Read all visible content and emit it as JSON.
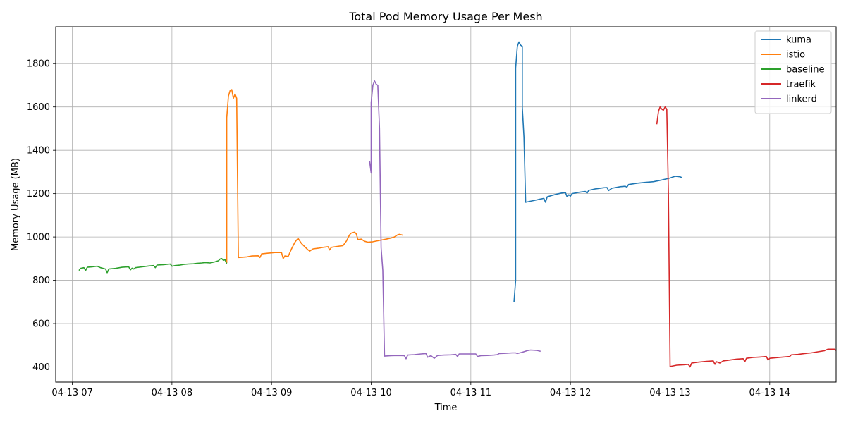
{
  "chart_data": {
    "type": "line",
    "title": "Total Pod Memory Usage Per Mesh",
    "xlabel": "Time",
    "ylabel": "Memory Usage (MB)",
    "x_ticks": [
      "04-13 07",
      "04-13 08",
      "04-13 09",
      "04-13 10",
      "04-13 11",
      "04-13 12",
      "04-13 13",
      "04-13 14"
    ],
    "y_ticks": [
      400,
      600,
      800,
      1000,
      1200,
      1400,
      1600,
      1800
    ],
    "xlim": [
      "04-13 06:50",
      "04-13 14:40"
    ],
    "ylim": [
      330,
      1970
    ],
    "grid": true,
    "legend_position": "top-right",
    "series": [
      {
        "name": "kuma",
        "color": "#1f77b4",
        "points": [
          [
            "04-13 11:26",
            700
          ],
          [
            "04-13 11:27",
            800
          ],
          [
            "04-13 11:27",
            1780
          ],
          [
            "04-13 11:28",
            1880
          ],
          [
            "04-13 11:29",
            1900
          ],
          [
            "04-13 11:30",
            1885
          ],
          [
            "04-13 11:31",
            1880
          ],
          [
            "04-13 11:31",
            1600
          ],
          [
            "04-13 11:32",
            1460
          ],
          [
            "04-13 11:33",
            1160
          ],
          [
            "04-13 11:36",
            1165
          ],
          [
            "04-13 11:39",
            1170
          ],
          [
            "04-13 11:42",
            1175
          ],
          [
            "04-13 11:44",
            1178
          ],
          [
            "04-13 11:45",
            1160
          ],
          [
            "04-13 11:46",
            1185
          ],
          [
            "04-13 11:49",
            1192
          ],
          [
            "04-13 11:52",
            1198
          ],
          [
            "04-13 11:55",
            1203
          ],
          [
            "04-13 11:57",
            1205
          ],
          [
            "04-13 11:58",
            1185
          ],
          [
            "04-13 11:59",
            1195
          ],
          [
            "04-13 12:00",
            1188
          ],
          [
            "04-13 12:01",
            1200
          ],
          [
            "04-13 12:05",
            1206
          ],
          [
            "04-13 12:09",
            1210
          ],
          [
            "04-13 12:10",
            1202
          ],
          [
            "04-13 12:11",
            1215
          ],
          [
            "04-13 12:15",
            1222
          ],
          [
            "04-13 12:20",
            1227
          ],
          [
            "04-13 12:22",
            1228
          ],
          [
            "04-13 12:23",
            1214
          ],
          [
            "04-13 12:25",
            1225
          ],
          [
            "04-13 12:30",
            1232
          ],
          [
            "04-13 12:33",
            1234
          ],
          [
            "04-13 12:34",
            1230
          ],
          [
            "04-13 12:35",
            1242
          ],
          [
            "04-13 12:40",
            1248
          ],
          [
            "04-13 12:45",
            1252
          ],
          [
            "04-13 12:47",
            1253
          ],
          [
            "04-13 12:50",
            1255
          ],
          [
            "04-13 12:55",
            1263
          ],
          [
            "04-13 13:00",
            1272
          ],
          [
            "04-13 13:03",
            1280
          ],
          [
            "04-13 13:06",
            1278
          ],
          [
            "04-13 13:07",
            1274
          ]
        ]
      },
      {
        "name": "istio",
        "color": "#ff7f0e",
        "points": [
          [
            "04-13 08:33",
            880
          ],
          [
            "04-13 08:33",
            1550
          ],
          [
            "04-13 08:34",
            1650
          ],
          [
            "04-13 08:35",
            1675
          ],
          [
            "04-13 08:36",
            1680
          ],
          [
            "04-13 08:37",
            1640
          ],
          [
            "04-13 08:38",
            1660
          ],
          [
            "04-13 08:39",
            1640
          ],
          [
            "04-13 08:40",
            905
          ],
          [
            "04-13 08:45",
            908
          ],
          [
            "04-13 08:48",
            912
          ],
          [
            "04-13 08:52",
            913
          ],
          [
            "04-13 08:53",
            905
          ],
          [
            "04-13 08:54",
            922
          ],
          [
            "04-13 08:58",
            925
          ],
          [
            "04-13 09:02",
            928
          ],
          [
            "04-13 09:06",
            928
          ],
          [
            "04-13 09:07",
            900
          ],
          [
            "04-13 09:08",
            912
          ],
          [
            "04-13 09:10",
            910
          ],
          [
            "04-13 09:12",
            945
          ],
          [
            "04-13 09:14",
            975
          ],
          [
            "04-13 09:15",
            985
          ],
          [
            "04-13 09:16",
            993
          ],
          [
            "04-13 09:18",
            970
          ],
          [
            "04-13 09:20",
            955
          ],
          [
            "04-13 09:22",
            940
          ],
          [
            "04-13 09:23",
            935
          ],
          [
            "04-13 09:25",
            945
          ],
          [
            "04-13 09:28",
            948
          ],
          [
            "04-13 09:31",
            952
          ],
          [
            "04-13 09:34",
            955
          ],
          [
            "04-13 09:35",
            940
          ],
          [
            "04-13 09:36",
            952
          ],
          [
            "04-13 09:41",
            958
          ],
          [
            "04-13 09:43",
            960
          ],
          [
            "04-13 09:45",
            980
          ],
          [
            "04-13 09:47",
            1010
          ],
          [
            "04-13 09:48",
            1018
          ],
          [
            "04-13 09:50",
            1022
          ],
          [
            "04-13 09:51",
            1015
          ],
          [
            "04-13 09:52",
            988
          ],
          [
            "04-13 09:54",
            990
          ],
          [
            "04-13 09:56",
            980
          ],
          [
            "04-13 09:58",
            976
          ],
          [
            "04-13 10:01",
            978
          ],
          [
            "04-13 10:05",
            984
          ],
          [
            "04-13 10:09",
            990
          ],
          [
            "04-13 10:12",
            995
          ],
          [
            "04-13 10:14",
            1000
          ],
          [
            "04-13 10:16",
            1010
          ],
          [
            "04-13 10:17",
            1012
          ],
          [
            "04-13 10:19",
            1008
          ]
        ]
      },
      {
        "name": "baseline",
        "color": "#2ca02c",
        "points": [
          [
            "04-13 07:04",
            845
          ],
          [
            "04-13 07:05",
            855
          ],
          [
            "04-13 07:07",
            858
          ],
          [
            "04-13 07:08",
            845
          ],
          [
            "04-13 07:09",
            860
          ],
          [
            "04-13 07:12",
            862
          ],
          [
            "04-13 07:15",
            865
          ],
          [
            "04-13 07:17",
            858
          ],
          [
            "04-13 07:20",
            852
          ],
          [
            "04-13 07:21",
            835
          ],
          [
            "04-13 07:22",
            852
          ],
          [
            "04-13 07:26",
            855
          ],
          [
            "04-13 07:30",
            860
          ],
          [
            "04-13 07:34",
            862
          ],
          [
            "04-13 07:35",
            848
          ],
          [
            "04-13 07:36",
            856
          ],
          [
            "04-13 07:37",
            852
          ],
          [
            "04-13 07:38",
            858
          ],
          [
            "04-13 07:42",
            862
          ],
          [
            "04-13 07:46",
            866
          ],
          [
            "04-13 07:49",
            868
          ],
          [
            "04-13 07:50",
            858
          ],
          [
            "04-13 07:51",
            870
          ],
          [
            "04-13 07:55",
            872
          ],
          [
            "04-13 07:59",
            875
          ],
          [
            "04-13 08:00",
            865
          ],
          [
            "04-13 08:02",
            868
          ],
          [
            "04-13 08:05",
            870
          ],
          [
            "04-13 08:07",
            873
          ],
          [
            "04-13 08:10",
            875
          ],
          [
            "04-13 08:13",
            876
          ],
          [
            "04-13 08:15",
            878
          ],
          [
            "04-13 08:18",
            880
          ],
          [
            "04-13 08:20",
            882
          ],
          [
            "04-13 08:23",
            880
          ],
          [
            "04-13 08:26",
            885
          ],
          [
            "04-13 08:28",
            890
          ],
          [
            "04-13 08:29",
            898
          ],
          [
            "04-13 08:30",
            900
          ],
          [
            "04-13 08:31",
            892
          ],
          [
            "04-13 08:32",
            895
          ],
          [
            "04-13 08:33",
            875
          ]
        ]
      },
      {
        "name": "traefik",
        "color": "#d62728",
        "points": [
          [
            "04-13 12:52",
            1520
          ],
          [
            "04-13 12:53",
            1580
          ],
          [
            "04-13 12:54",
            1600
          ],
          [
            "04-13 12:55",
            1590
          ],
          [
            "04-13 12:56",
            1585
          ],
          [
            "04-13 12:57",
            1600
          ],
          [
            "04-13 12:58",
            1590
          ],
          [
            "04-13 12:59",
            1200
          ],
          [
            "04-13 13:00",
            402
          ],
          [
            "04-13 13:04",
            408
          ],
          [
            "04-13 13:08",
            410
          ],
          [
            "04-13 13:11",
            412
          ],
          [
            "04-13 13:12",
            400
          ],
          [
            "04-13 13:13",
            418
          ],
          [
            "04-13 13:17",
            422
          ],
          [
            "04-13 13:22",
            426
          ],
          [
            "04-13 13:26",
            428
          ],
          [
            "04-13 13:27",
            412
          ],
          [
            "04-13 13:28",
            424
          ],
          [
            "04-13 13:30",
            418
          ],
          [
            "04-13 13:32",
            428
          ],
          [
            "04-13 13:36",
            432
          ],
          [
            "04-13 13:40",
            436
          ],
          [
            "04-13 13:44",
            438
          ],
          [
            "04-13 13:45",
            424
          ],
          [
            "04-13 13:46",
            440
          ],
          [
            "04-13 13:50",
            444
          ],
          [
            "04-13 13:54",
            446
          ],
          [
            "04-13 13:58",
            448
          ],
          [
            "04-13 13:59",
            432
          ],
          [
            "04-13 14:00",
            440
          ],
          [
            "04-13 14:04",
            443
          ],
          [
            "04-13 14:08",
            446
          ],
          [
            "04-13 14:12",
            448
          ],
          [
            "04-13 14:13",
            456
          ],
          [
            "04-13 14:17",
            458
          ],
          [
            "04-13 14:21",
            462
          ],
          [
            "04-13 14:25",
            465
          ],
          [
            "04-13 14:29",
            470
          ],
          [
            "04-13 14:33",
            475
          ],
          [
            "04-13 14:35",
            482
          ],
          [
            "04-13 14:39",
            482
          ],
          [
            "04-13 14:40",
            476
          ]
        ]
      },
      {
        "name": "linkerd",
        "color": "#9467bd",
        "points": [
          [
            "04-13 09:59",
            1350
          ],
          [
            "04-13 10:00",
            1295
          ],
          [
            "04-13 10:00",
            1620
          ],
          [
            "04-13 10:01",
            1700
          ],
          [
            "04-13 10:02",
            1720
          ],
          [
            "04-13 10:03",
            1705
          ],
          [
            "04-13 10:04",
            1700
          ],
          [
            "04-13 10:05",
            1500
          ],
          [
            "04-13 10:06",
            950
          ],
          [
            "04-13 10:07",
            845
          ],
          [
            "04-13 10:08",
            450
          ],
          [
            "04-13 10:12",
            452
          ],
          [
            "04-13 10:16",
            453
          ],
          [
            "04-13 10:20",
            452
          ],
          [
            "04-13 10:21",
            438
          ],
          [
            "04-13 10:22",
            455
          ],
          [
            "04-13 10:26",
            457
          ],
          [
            "04-13 10:30",
            460
          ],
          [
            "04-13 10:33",
            462
          ],
          [
            "04-13 10:34",
            445
          ],
          [
            "04-13 10:36",
            452
          ],
          [
            "04-13 10:38",
            440
          ],
          [
            "04-13 10:40",
            453
          ],
          [
            "04-13 10:44",
            455
          ],
          [
            "04-13 10:48",
            456
          ],
          [
            "04-13 10:51",
            458
          ],
          [
            "04-13 10:52",
            448
          ],
          [
            "04-13 10:53",
            460
          ],
          [
            "04-13 10:57",
            460
          ],
          [
            "04-13 11:01",
            460
          ],
          [
            "04-13 11:03",
            460
          ],
          [
            "04-13 11:04",
            448
          ],
          [
            "04-13 11:06",
            452
          ],
          [
            "04-13 11:10",
            453
          ],
          [
            "04-13 11:14",
            455
          ],
          [
            "04-13 11:16",
            457
          ],
          [
            "04-13 11:17",
            462
          ],
          [
            "04-13 11:21",
            463
          ],
          [
            "04-13 11:25",
            465
          ],
          [
            "04-13 11:27",
            465
          ],
          [
            "04-13 11:28",
            462
          ],
          [
            "04-13 11:31",
            468
          ],
          [
            "04-13 11:34",
            475
          ],
          [
            "04-13 11:36",
            478
          ],
          [
            "04-13 11:40",
            476
          ],
          [
            "04-13 11:42",
            472
          ]
        ]
      }
    ]
  }
}
